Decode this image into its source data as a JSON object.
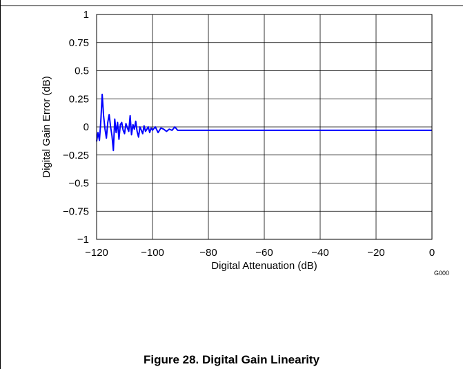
{
  "chart_data": {
    "type": "line",
    "title": "",
    "xlabel": "Digital Attenuation (dB)",
    "ylabel": "Digital Gain Error (dB)",
    "xlim": [
      -120,
      0
    ],
    "ylim": [
      -1,
      1
    ],
    "xticks": [
      -120,
      -100,
      -80,
      -60,
      -40,
      -20,
      0
    ],
    "xtick_labels": [
      "−120",
      "−100",
      "−80",
      "−60",
      "−40",
      "−20",
      "0"
    ],
    "yticks": [
      1,
      0.75,
      0.5,
      0.25,
      0,
      -0.25,
      -0.5,
      -0.75,
      -1
    ],
    "ytick_labels": [
      "1",
      "0.75",
      "0.5",
      "0.25",
      "0",
      "−0.25",
      "−0.5",
      "−0.75",
      "−1"
    ],
    "grid": true,
    "legend": "none",
    "series": [
      {
        "color": "#0000ff",
        "x": [
          -120,
          -119.5,
          -119,
          -118.5,
          -118,
          -117.5,
          -117,
          -116.5,
          -116,
          -115.5,
          -115,
          -114.5,
          -114,
          -113.5,
          -113,
          -112.5,
          -112,
          -111.5,
          -111,
          -110.5,
          -110,
          -109.5,
          -109,
          -108.5,
          -108,
          -107.5,
          -107,
          -106.5,
          -106,
          -105.5,
          -105,
          -104.5,
          -104,
          -103.5,
          -103,
          -102.5,
          -102,
          -101.5,
          -101,
          -100.5,
          -100,
          -99,
          -98,
          -97,
          -96,
          -95,
          -94,
          -93,
          -92,
          -91,
          -90,
          -85,
          -80,
          -75,
          -70,
          -65,
          -60,
          -55,
          -50,
          -45,
          -40,
          -35,
          -30,
          -25,
          -20,
          -15,
          -10,
          -5,
          0
        ],
        "y": [
          -0.13,
          -0.05,
          -0.12,
          0.05,
          0.29,
          0.1,
          -0.02,
          -0.1,
          0.04,
          0.11,
          0.0,
          -0.08,
          -0.21,
          0.07,
          -0.05,
          0.04,
          -0.11,
          0.02,
          0.04,
          -0.03,
          -0.06,
          0.03,
          -0.01,
          -0.04,
          0.1,
          -0.07,
          0.02,
          -0.02,
          0.05,
          -0.04,
          -0.09,
          0.0,
          -0.03,
          -0.06,
          0.01,
          -0.04,
          -0.02,
          0.0,
          -0.05,
          -0.01,
          -0.03,
          0.0,
          -0.05,
          -0.01,
          -0.02,
          -0.04,
          -0.02,
          -0.03,
          0.0,
          -0.03,
          -0.03,
          -0.03,
          -0.03,
          -0.03,
          -0.03,
          -0.03,
          -0.03,
          -0.03,
          -0.03,
          -0.03,
          -0.03,
          -0.03,
          -0.03,
          -0.03,
          -0.03,
          -0.03,
          -0.03,
          -0.03,
          -0.03
        ]
      }
    ]
  },
  "figure_code": "G000",
  "caption": "Figure 28. Digital Gain Linearity"
}
